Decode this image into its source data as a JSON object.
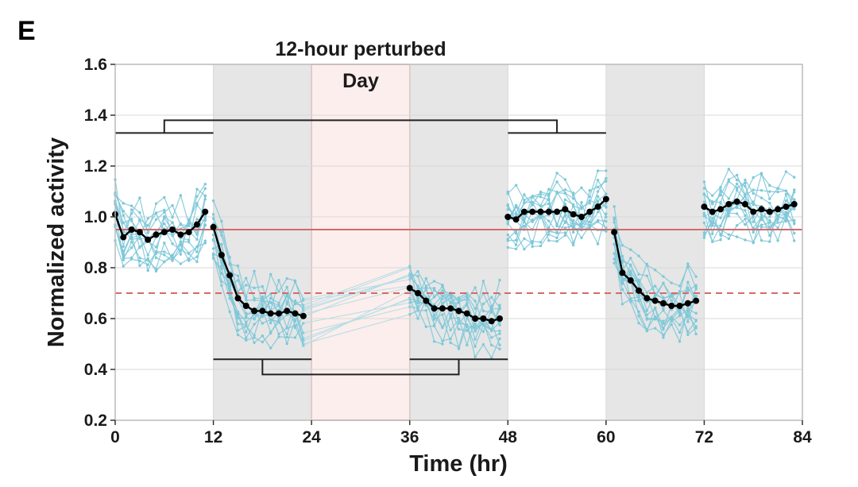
{
  "panel_label": "E",
  "chart_data": {
    "type": "line",
    "title": "",
    "xlabel": "Time (hr)",
    "ylabel": "Normalized activity",
    "xlim": [
      0,
      84
    ],
    "ylim": [
      0.2,
      1.6
    ],
    "xticks": [
      0,
      12,
      24,
      36,
      48,
      60,
      72,
      84
    ],
    "yticks": [
      0.2,
      0.4,
      0.6,
      0.8,
      1.0,
      1.2,
      1.4,
      1.6
    ],
    "xtick_labels": [
      "0",
      "12",
      "24",
      "36",
      "48",
      "60",
      "72",
      "84"
    ],
    "ytick_labels": [
      "0.2",
      "0.4",
      "0.6",
      "0.8",
      "1.0",
      "1.2",
      "1.4",
      "1.6"
    ],
    "grid": true,
    "dark_periods": [
      [
        12,
        24
      ],
      [
        36,
        48
      ],
      [
        60,
        72
      ]
    ],
    "perturbed_period": [
      24,
      36
    ],
    "annotations": {
      "perturbed_line1": "12-hour perturbed",
      "perturbed_line2": "Day"
    },
    "reference_lines": [
      {
        "name": "solid-threshold",
        "y": 0.95,
        "style": "solid",
        "color": "#d46a6a"
      },
      {
        "name": "dashed-threshold",
        "y": 0.7,
        "style": "dashed",
        "color": "#d46a6a"
      }
    ],
    "comparison_brackets": [
      {
        "name": "top-bracket",
        "left": [
          0,
          12
        ],
        "right": [
          48,
          60
        ],
        "level": 1.33,
        "connector": 1.38,
        "left_drop": 6,
        "right_drop": 54
      },
      {
        "name": "bottom-bracket",
        "left": [
          12,
          24
        ],
        "right": [
          36,
          48
        ],
        "level": 0.44,
        "connector": 0.38,
        "left_drop": 18,
        "right_drop": 42
      }
    ],
    "series": [
      {
        "name": "mean",
        "color": "#000000",
        "segments": [
          {
            "x": [
              0,
              1,
              2,
              3,
              4,
              5,
              6,
              7,
              8,
              9,
              10,
              11
            ],
            "y": [
              1.01,
              0.92,
              0.95,
              0.94,
              0.91,
              0.93,
              0.94,
              0.95,
              0.93,
              0.94,
              0.97,
              1.02
            ]
          },
          {
            "x": [
              12,
              13,
              14,
              15,
              16,
              17,
              18,
              19,
              20,
              21,
              22,
              23
            ],
            "y": [
              0.96,
              0.85,
              0.77,
              0.68,
              0.65,
              0.63,
              0.63,
              0.62,
              0.62,
              0.63,
              0.62,
              0.61
            ]
          },
          {
            "x": [
              36,
              37,
              38,
              39,
              40,
              41,
              42,
              43,
              44,
              45,
              46,
              47
            ],
            "y": [
              0.72,
              0.7,
              0.67,
              0.64,
              0.64,
              0.64,
              0.63,
              0.62,
              0.6,
              0.6,
              0.59,
              0.6
            ]
          },
          {
            "x": [
              48,
              49,
              50,
              51,
              52,
              53,
              54,
              55,
              56,
              57,
              58,
              59,
              60
            ],
            "y": [
              1.0,
              0.99,
              1.02,
              1.02,
              1.02,
              1.02,
              1.02,
              1.03,
              1.01,
              1.0,
              1.02,
              1.04,
              1.07
            ]
          },
          {
            "x": [
              61,
              62,
              63,
              64,
              65,
              66,
              67,
              68,
              69,
              70,
              71
            ],
            "y": [
              0.94,
              0.78,
              0.75,
              0.71,
              0.68,
              0.67,
              0.66,
              0.65,
              0.65,
              0.66,
              0.67
            ]
          },
          {
            "x": [
              72,
              73,
              74,
              75,
              76,
              77,
              78,
              79,
              80,
              81,
              82,
              83
            ],
            "y": [
              1.04,
              1.02,
              1.03,
              1.05,
              1.06,
              1.05,
              1.02,
              1.03,
              1.02,
              1.03,
              1.04,
              1.05
            ]
          }
        ]
      }
    ],
    "individual_traces": {
      "count": 14,
      "color": "#7ec8d8"
    }
  }
}
